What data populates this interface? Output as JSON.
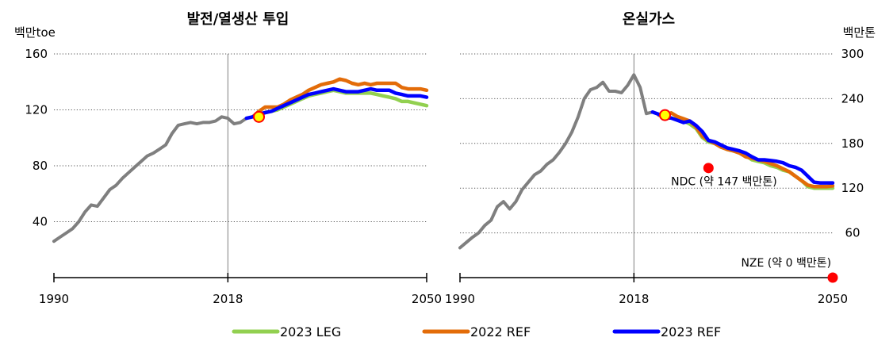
{
  "chart_data": [
    {
      "type": "line",
      "title": "발전/열생산 투입",
      "ylabel": "백만toe",
      "xlim": [
        1990,
        2050
      ],
      "ylim": [
        0,
        160
      ],
      "y_ticks": [
        40,
        80,
        120,
        160
      ],
      "x_ticks": [
        1990,
        2018,
        2050
      ],
      "reference_line_x": 2018,
      "grid": "horizontal dotted",
      "series": [
        {
          "name": "historical",
          "color": "#7f7f7f",
          "x": [
            1990,
            1991,
            1992,
            1993,
            1994,
            1995,
            1996,
            1997,
            1998,
            1999,
            2000,
            2001,
            2002,
            2003,
            2004,
            2005,
            2006,
            2007,
            2008,
            2009,
            2010,
            2011,
            2012,
            2013,
            2014,
            2015,
            2016,
            2017,
            2018,
            2019,
            2020,
            2021
          ],
          "values": [
            26,
            29,
            32,
            35,
            40,
            47,
            52,
            51,
            57,
            63,
            66,
            71,
            75,
            79,
            83,
            87,
            89,
            92,
            95,
            103,
            109,
            110,
            111,
            110,
            111,
            111,
            112,
            115,
            114,
            110,
            111,
            114
          ]
        },
        {
          "name": "2023 LEG",
          "color": "#92d050",
          "x": [
            2022,
            2023,
            2024,
            2025,
            2026,
            2027,
            2028,
            2029,
            2030,
            2031,
            2032,
            2033,
            2034,
            2035,
            2036,
            2037,
            2038,
            2039,
            2040,
            2041,
            2042,
            2043,
            2044,
            2045,
            2046,
            2047,
            2048,
            2049,
            2050
          ],
          "values": [
            115,
            116,
            118,
            119,
            120,
            122,
            124,
            126,
            128,
            130,
            131,
            132,
            133,
            134,
            133,
            132,
            132,
            132,
            132,
            132,
            131,
            130,
            129,
            128,
            126,
            126,
            125,
            124,
            123
          ]
        },
        {
          "name": "2022 REF",
          "color": "#e36c09",
          "x": [
            2022,
            2023,
            2024,
            2025,
            2026,
            2027,
            2028,
            2029,
            2030,
            2031,
            2032,
            2033,
            2034,
            2035,
            2036,
            2037,
            2038,
            2039,
            2040,
            2041,
            2042,
            2043,
            2044,
            2045,
            2046,
            2047,
            2048,
            2049,
            2050
          ],
          "values": [
            115,
            119,
            122,
            122,
            122,
            124,
            127,
            129,
            131,
            134,
            136,
            138,
            139,
            140,
            142,
            141,
            139,
            138,
            139,
            138,
            139,
            139,
            139,
            139,
            136,
            135,
            135,
            135,
            134
          ]
        },
        {
          "name": "2023 REF",
          "color": "#0000ff",
          "x": [
            2021,
            2022,
            2023,
            2024,
            2025,
            2026,
            2027,
            2028,
            2029,
            2030,
            2031,
            2032,
            2033,
            2034,
            2035,
            2036,
            2037,
            2038,
            2039,
            2040,
            2041,
            2042,
            2043,
            2044,
            2045,
            2046,
            2047,
            2048,
            2049,
            2050
          ],
          "values": [
            114,
            115,
            117,
            118,
            119,
            121,
            123,
            125,
            127,
            129,
            131,
            132,
            133,
            134,
            135,
            134,
            133,
            133,
            133,
            134,
            135,
            134,
            134,
            134,
            132,
            131,
            130,
            130,
            130,
            129
          ]
        }
      ],
      "markers": [
        {
          "type": "circle",
          "fill": "#ffff00",
          "stroke": "#ff0000",
          "x": 2023,
          "y": 115
        }
      ]
    },
    {
      "type": "line",
      "title": "온실가스",
      "ylabel": "백만톤",
      "xlim": [
        1990,
        2050
      ],
      "ylim": [
        0,
        300
      ],
      "y_ticks": [
        60,
        120,
        180,
        240,
        300
      ],
      "x_ticks": [
        1990,
        2018,
        2050
      ],
      "reference_line_x": 2018,
      "grid": "horizontal dotted",
      "series": [
        {
          "name": "historical",
          "color": "#7f7f7f",
          "x": [
            1990,
            1991,
            1992,
            1993,
            1994,
            1995,
            1996,
            1997,
            1998,
            1999,
            2000,
            2001,
            2002,
            2003,
            2004,
            2005,
            2006,
            2007,
            2008,
            2009,
            2010,
            2011,
            2012,
            2013,
            2014,
            2015,
            2016,
            2017,
            2018,
            2019,
            2020,
            2021
          ],
          "values": [
            40,
            47,
            54,
            60,
            70,
            77,
            95,
            102,
            92,
            102,
            118,
            128,
            138,
            143,
            152,
            158,
            168,
            180,
            195,
            215,
            240,
            252,
            255,
            262,
            250,
            250,
            248,
            258,
            272,
            255,
            220,
            222
          ]
        },
        {
          "name": "2023 LEG",
          "color": "#92d050",
          "x": [
            2022,
            2023,
            2024,
            2025,
            2026,
            2027,
            2028,
            2029,
            2030,
            2031,
            2032,
            2033,
            2034,
            2035,
            2036,
            2037,
            2038,
            2039,
            2040,
            2041,
            2042,
            2043,
            2044,
            2045,
            2046,
            2047,
            2048,
            2049,
            2050
          ],
          "values": [
            218,
            216,
            214,
            212,
            210,
            206,
            200,
            188,
            182,
            180,
            176,
            172,
            170,
            168,
            164,
            158,
            156,
            154,
            150,
            148,
            144,
            142,
            136,
            130,
            122,
            120,
            120,
            120,
            120
          ]
        },
        {
          "name": "2022 REF",
          "color": "#e36c09",
          "x": [
            2022,
            2023,
            2024,
            2025,
            2026,
            2027,
            2028,
            2029,
            2030,
            2031,
            2032,
            2033,
            2034,
            2035,
            2036,
            2037,
            2038,
            2039,
            2040,
            2041,
            2042,
            2043,
            2044,
            2045,
            2046,
            2047,
            2048,
            2049,
            2050
          ],
          "values": [
            218,
            216,
            221,
            216,
            213,
            210,
            202,
            190,
            184,
            180,
            175,
            172,
            170,
            167,
            162,
            160,
            158,
            156,
            153,
            150,
            146,
            142,
            136,
            130,
            124,
            122,
            122,
            122,
            123
          ]
        },
        {
          "name": "2023 REF",
          "color": "#0000ff",
          "x": [
            2021,
            2022,
            2023,
            2024,
            2025,
            2026,
            2027,
            2028,
            2029,
            2030,
            2031,
            2032,
            2033,
            2034,
            2035,
            2036,
            2037,
            2038,
            2039,
            2040,
            2041,
            2042,
            2043,
            2044,
            2045,
            2046,
            2047,
            2048,
            2049,
            2050
          ],
          "values": [
            222,
            219,
            214,
            214,
            211,
            208,
            210,
            204,
            196,
            184,
            182,
            178,
            174,
            172,
            170,
            167,
            162,
            158,
            158,
            157,
            156,
            154,
            150,
            148,
            144,
            136,
            128,
            127,
            127,
            127
          ]
        }
      ],
      "markers": [
        {
          "type": "circle",
          "fill": "#ffff00",
          "stroke": "#ff0000",
          "x": 2023,
          "y": 218
        },
        {
          "type": "dot",
          "fill": "#ff0000",
          "x": 2030,
          "y": 147
        },
        {
          "type": "dot",
          "fill": "#ff0000",
          "x": 2050,
          "y": 0
        }
      ],
      "annotations": [
        {
          "text": "NDC (약 147 백만톤)",
          "x": 2032.5,
          "y": 124
        },
        {
          "text": "NZE (약 0 백만톤)",
          "x": 2042.5,
          "y": 15
        }
      ]
    }
  ],
  "legend": {
    "position": "bottom",
    "items": [
      {
        "label": "2023 LEG",
        "color": "#92d050"
      },
      {
        "label": "2022 REF",
        "color": "#e36c09"
      },
      {
        "label": "2023 REF",
        "color": "#0000ff"
      }
    ]
  }
}
